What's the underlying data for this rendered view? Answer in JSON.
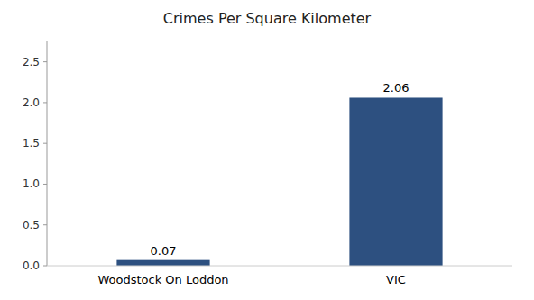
{
  "chart_data": {
    "type": "bar",
    "title": "Crimes Per Square Kilometer",
    "categories": [
      "Woodstock On Loddon",
      "VIC"
    ],
    "values": [
      0.07,
      2.06
    ],
    "colors": [
      "#2d5080",
      "#2d5080"
    ],
    "ylim": [
      0,
      2.75
    ],
    "yticks": [
      {
        "value": 0,
        "label": "0.0"
      },
      0.5,
      {
        "value": 1,
        "label": "1.0"
      },
      1.5,
      {
        "value": 2,
        "label": "2.0"
      },
      2.5
    ],
    "data_labels": true,
    "grid": false
  }
}
